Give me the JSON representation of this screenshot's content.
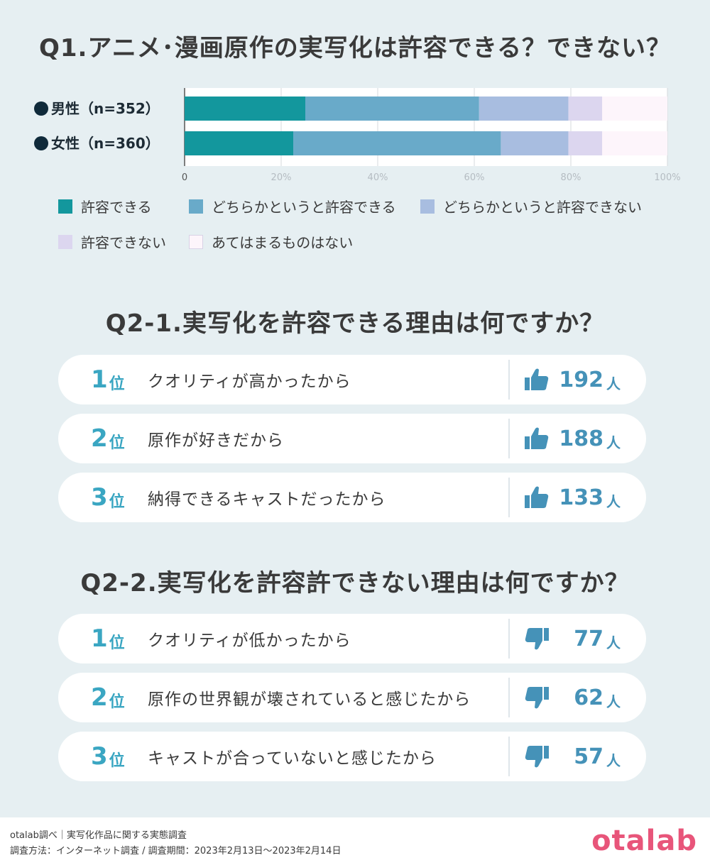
{
  "q1": {
    "title": "Q1.アニメ･漫画原作の実写化は許容できる？できない？"
  },
  "chart_data": {
    "type": "bar",
    "orientation": "horizontal-stacked-100",
    "categories": [
      "男性（n=352）",
      "女性（n=360）"
    ],
    "series": [
      {
        "name": "許容できる",
        "color": "#13979d",
        "values": [
          25,
          22.5
        ]
      },
      {
        "name": "どちらかというと許容できる",
        "color": "#69aac9",
        "values": [
          36,
          43
        ]
      },
      {
        "name": "どちらかというと許容できない",
        "color": "#a8bde0",
        "values": [
          18.5,
          14
        ]
      },
      {
        "name": "許容できない",
        "color": "#dcd6ef",
        "values": [
          7,
          7
        ]
      },
      {
        "name": "あてはまるものはない",
        "color": "#fdf5fb",
        "values": [
          13.5,
          13.5
        ]
      }
    ],
    "xlim": [
      0,
      100
    ],
    "ticks": [
      "0",
      "20%",
      "40%",
      "60%",
      "80%",
      "100%"
    ],
    "grid": true,
    "legend_position": "bottom",
    "marker_color": "#0f2a3a"
  },
  "q2_1": {
    "title": "Q2-1.実写化を許容できる理由は何ですか？",
    "icon": "thumbs-up-icon",
    "unit": "人",
    "items": [
      {
        "rank": "1",
        "rank_unit": "位",
        "label": "クオリティが高かったから",
        "count": "192"
      },
      {
        "rank": "2",
        "rank_unit": "位",
        "label": "原作が好きだから",
        "count": "188"
      },
      {
        "rank": "3",
        "rank_unit": "位",
        "label": "納得できるキャストだったから",
        "count": "133"
      }
    ]
  },
  "q2_2": {
    "title": "Q2-2.実写化を許容許できない理由は何ですか？",
    "icon": "thumbs-down-icon",
    "unit": "人",
    "items": [
      {
        "rank": "1",
        "rank_unit": "位",
        "label": "クオリティが低かったから",
        "count": "77"
      },
      {
        "rank": "2",
        "rank_unit": "位",
        "label": "原作の世界観が壊されていると感じたから",
        "count": "62"
      },
      {
        "rank": "3",
        "rank_unit": "位",
        "label": "キャストが合っていないと感じたから",
        "count": "57"
      }
    ]
  },
  "footer": {
    "line1": "otalab調べ｜実写化作品に関する実態調査",
    "line2": "調査方法：インターネット調査 / 調査期間：2023年2月13日〜2023年2月14日",
    "brand": "otalab"
  },
  "colors": {
    "accent_rank": "#3aa6c2",
    "count": "#4592b8",
    "brand": "#e8557a"
  }
}
